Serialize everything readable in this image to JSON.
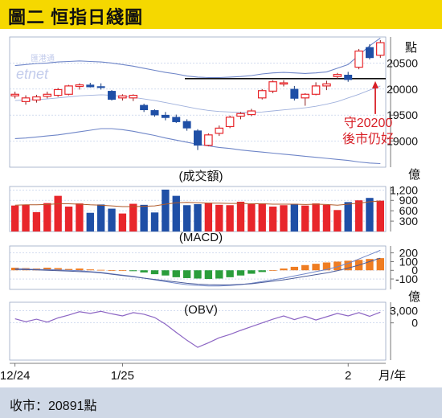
{
  "title": "圖二 恒指日綫圖",
  "footer": "收市：20891點",
  "watermark": [
    "匯港通",
    "etnet"
  ],
  "colors": {
    "up": "#e8262b",
    "down": "#1f4fa6",
    "band": "#6f86c8",
    "macd_pos": "#ef7d22",
    "macd_neg": "#2a9d3b",
    "annotation": "#d81f26",
    "grid": "#b9c8e6"
  },
  "chart_data": [
    {
      "type": "candlestick",
      "panel": "price",
      "unit_label": "點",
      "ylim": [
        18500,
        21000
      ],
      "yticks": [
        19000,
        19500,
        20000,
        20500
      ],
      "support_line": 20200,
      "annotation": {
        "lines": [
          "守20200",
          "後市仍好"
        ],
        "points_to": 20200
      },
      "series": [
        {
          "open": 19870,
          "high": 19950,
          "low": 19820,
          "close": 19900
        },
        {
          "open": 19760,
          "high": 19880,
          "low": 19700,
          "close": 19830
        },
        {
          "open": 19790,
          "high": 19890,
          "low": 19740,
          "close": 19850
        },
        {
          "open": 19860,
          "high": 19950,
          "low": 19820,
          "close": 19900
        },
        {
          "open": 19880,
          "high": 20020,
          "low": 19850,
          "close": 19990
        },
        {
          "open": 19900,
          "high": 20080,
          "low": 19880,
          "close": 20060
        },
        {
          "open": 20050,
          "high": 20110,
          "low": 19990,
          "close": 20080
        },
        {
          "open": 20080,
          "high": 20120,
          "low": 20030,
          "close": 20040
        },
        {
          "open": 20050,
          "high": 20110,
          "low": 19990,
          "close": 20030
        },
        {
          "open": 19960,
          "high": 19980,
          "low": 19780,
          "close": 19800
        },
        {
          "open": 19830,
          "high": 19900,
          "low": 19780,
          "close": 19870
        },
        {
          "open": 19830,
          "high": 19900,
          "low": 19770,
          "close": 19880
        },
        {
          "open": 19690,
          "high": 19720,
          "low": 19560,
          "close": 19600
        },
        {
          "open": 19590,
          "high": 19610,
          "low": 19470,
          "close": 19500
        },
        {
          "open": 19500,
          "high": 19560,
          "low": 19400,
          "close": 19450
        },
        {
          "open": 19460,
          "high": 19510,
          "low": 19350,
          "close": 19370
        },
        {
          "open": 19380,
          "high": 19420,
          "low": 19200,
          "close": 19250
        },
        {
          "open": 19200,
          "high": 19230,
          "low": 18830,
          "close": 18920
        },
        {
          "open": 18920,
          "high": 19150,
          "low": 18900,
          "close": 19120
        },
        {
          "open": 19150,
          "high": 19300,
          "low": 19100,
          "close": 19250
        },
        {
          "open": 19280,
          "high": 19490,
          "low": 19250,
          "close": 19460
        },
        {
          "open": 19480,
          "high": 19560,
          "low": 19420,
          "close": 19530
        },
        {
          "open": 19510,
          "high": 19620,
          "low": 19480,
          "close": 19580
        },
        {
          "open": 19830,
          "high": 20000,
          "low": 19800,
          "close": 19970
        },
        {
          "open": 19960,
          "high": 20170,
          "low": 19920,
          "close": 20140
        },
        {
          "open": 20100,
          "high": 20170,
          "low": 20050,
          "close": 20120
        },
        {
          "open": 20000,
          "high": 20060,
          "low": 19780,
          "close": 19820
        },
        {
          "open": 19830,
          "high": 19920,
          "low": 19680,
          "close": 19900
        },
        {
          "open": 19900,
          "high": 20130,
          "low": 19880,
          "close": 20060
        },
        {
          "open": 20060,
          "high": 20160,
          "low": 19980,
          "close": 20100
        },
        {
          "open": 20240,
          "high": 20310,
          "low": 20200,
          "close": 20280
        },
        {
          "open": 20270,
          "high": 20330,
          "low": 20140,
          "close": 20180
        },
        {
          "open": 20420,
          "high": 20770,
          "low": 20380,
          "close": 20730
        },
        {
          "open": 20800,
          "high": 20860,
          "low": 20570,
          "close": 20600
        },
        {
          "open": 20650,
          "high": 20940,
          "low": 20600,
          "close": 20891
        }
      ],
      "upper_band": [
        20450,
        20470,
        20490,
        20500,
        20520,
        20530,
        20540,
        20530,
        20520,
        20500,
        20470,
        20440,
        20400,
        20360,
        20320,
        20290,
        20250,
        20230,
        20220,
        20220,
        20230,
        20240,
        20260,
        20290,
        20310,
        20320,
        20310,
        20300,
        20310,
        20330,
        20400,
        20470,
        20650,
        20830,
        20980
      ],
      "lower_band": [
        19050,
        19060,
        19080,
        19100,
        19120,
        19150,
        19180,
        19210,
        19240,
        19240,
        19220,
        19190,
        19150,
        19110,
        19060,
        19020,
        18980,
        18940,
        18910,
        18880,
        18860,
        18830,
        18810,
        18790,
        18770,
        18750,
        18730,
        18710,
        18690,
        18670,
        18650,
        18630,
        18600,
        18580,
        18570
      ],
      "middle_band": [
        19780,
        19790,
        19800,
        19810,
        19830,
        19850,
        19870,
        19880,
        19890,
        19880,
        19860,
        19840,
        19810,
        19780,
        19740,
        19700,
        19660,
        19620,
        19590,
        19570,
        19560,
        19550,
        19550,
        19560,
        19580,
        19600,
        19620,
        19640,
        19670,
        19710,
        19760,
        19830,
        19900,
        19980,
        20060
      ]
    },
    {
      "type": "bar",
      "panel": "volume",
      "title": "(成交額)",
      "unit_label": "億",
      "ylim": [
        0,
        1300
      ],
      "yticks": [
        300,
        600,
        900,
        1200
      ],
      "ytick_labels": [
        "300",
        "600",
        "900",
        "1,200"
      ],
      "values": [
        750,
        770,
        560,
        820,
        1030,
        720,
        810,
        540,
        780,
        660,
        520,
        800,
        770,
        550,
        1210,
        1030,
        760,
        790,
        830,
        770,
        760,
        860,
        790,
        810,
        720,
        760,
        800,
        750,
        810,
        770,
        620,
        850,
        900,
        970,
        890
      ],
      "ma_line": [
        760,
        770,
        770,
        780,
        800,
        800,
        790,
        770,
        760,
        740,
        720,
        720,
        730,
        740,
        790,
        830,
        840,
        830,
        820,
        820,
        810,
        810,
        800,
        800,
        790,
        790,
        790,
        780,
        790,
        780,
        760,
        790,
        820,
        860,
        880
      ]
    },
    {
      "type": "bar",
      "panel": "macd",
      "title": "(MACD)",
      "ylim": [
        -220,
        280
      ],
      "yticks": [
        -100,
        0,
        100,
        200
      ],
      "values": [
        30,
        25,
        20,
        30,
        25,
        15,
        20,
        10,
        5,
        0,
        0,
        -10,
        -25,
        -45,
        -60,
        -80,
        -90,
        -95,
        -100,
        -95,
        -80,
        -60,
        -40,
        -20,
        0,
        20,
        40,
        60,
        75,
        90,
        100,
        110,
        120,
        130,
        140
      ],
      "macd_line": [
        20,
        15,
        10,
        10,
        5,
        0,
        -5,
        -15,
        -25,
        -40,
        -55,
        -70,
        -90,
        -110,
        -130,
        -150,
        -165,
        -175,
        -180,
        -180,
        -175,
        -165,
        -150,
        -130,
        -110,
        -90,
        -65,
        -40,
        -15,
        10,
        40,
        80,
        130,
        180,
        230
      ],
      "signal_line": [
        10,
        8,
        5,
        0,
        -5,
        -10,
        -15,
        -20,
        -30,
        -45,
        -60,
        -75,
        -90,
        -105,
        -120,
        -135,
        -150,
        -160,
        -165,
        -168,
        -168,
        -162,
        -155,
        -140,
        -125,
        -110,
        -90,
        -70,
        -50,
        -30,
        -5,
        25,
        60,
        100,
        140
      ]
    },
    {
      "type": "line",
      "panel": "obv",
      "title": "(OBV)",
      "unit_label": "億",
      "ylim": [
        -9000,
        5000
      ],
      "yticks": [
        0,
        3000
      ],
      "ytick_labels": [
        "0",
        "3,000"
      ],
      "values": [
        1000,
        300,
        900,
        200,
        1200,
        1900,
        2700,
        2300,
        2800,
        2200,
        1700,
        2500,
        2100,
        1300,
        -300,
        -2300,
        -4200,
        -5900,
        -4800,
        -3600,
        -2800,
        -1800,
        -900,
        0,
        900,
        1700,
        800,
        1600,
        700,
        1500,
        2300,
        1700,
        2500,
        1600,
        2600
      ]
    }
  ],
  "x_axis": {
    "tick_labels": [
      "12/24",
      "1/25",
      "2"
    ],
    "unit_label": "月/年",
    "tick_index": [
      0,
      10,
      31
    ]
  }
}
